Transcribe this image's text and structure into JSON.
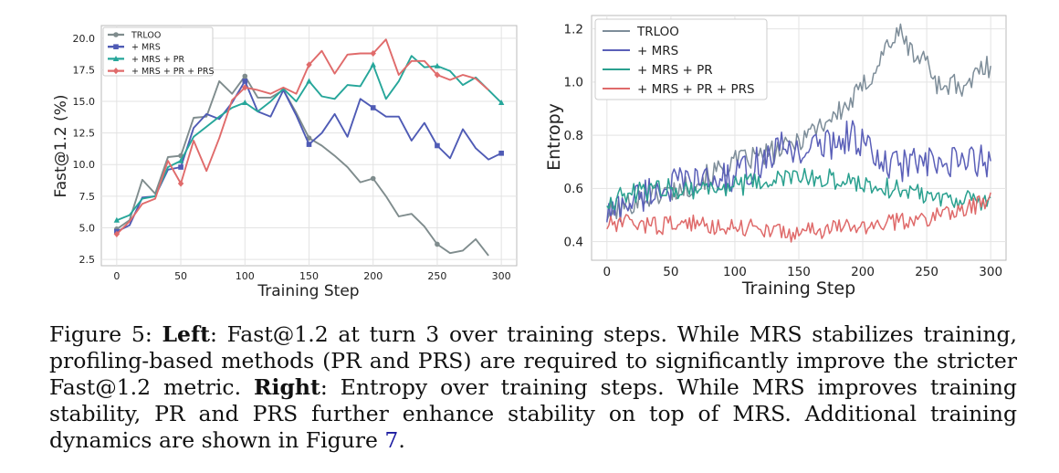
{
  "chart_data": [
    {
      "type": "line",
      "panel": "left",
      "xlabel": "Training Step",
      "ylabel": "Fast@1.2 (%)",
      "xlim": [
        -12,
        312
      ],
      "ylim": [
        2.0,
        21.0
      ],
      "xticks": [
        0,
        50,
        100,
        150,
        200,
        250,
        300
      ],
      "yticks": [
        2.5,
        5.0,
        7.5,
        10.0,
        12.5,
        15.0,
        17.5,
        20.0
      ],
      "ytick_labels": [
        "2.5",
        "5.0",
        "7.5",
        "10.0",
        "12.5",
        "15.0",
        "17.5",
        "20.0"
      ],
      "legend_position": "top-left",
      "marker_every": 50,
      "series": [
        {
          "name": "TRLOO",
          "color": "#7f8c8d",
          "marker": "circle",
          "x": [
            0,
            10,
            20,
            30,
            40,
            50,
            60,
            70,
            80,
            90,
            100,
            110,
            120,
            130,
            140,
            150,
            160,
            170,
            180,
            190,
            200,
            210,
            220,
            230,
            240,
            250,
            260,
            270,
            280,
            290
          ],
          "y": [
            4.9,
            5.6,
            8.8,
            7.7,
            10.6,
            10.7,
            13.7,
            13.8,
            16.6,
            15.6,
            17.0,
            15.3,
            15.3,
            15.9,
            14.1,
            12.1,
            11.5,
            10.7,
            9.8,
            8.6,
            8.9,
            7.5,
            5.9,
            6.1,
            5.1,
            3.7,
            3.0,
            3.2,
            4.1,
            2.8
          ]
        },
        {
          "name": "+ MRS",
          "color": "#4f5bb5",
          "marker": "square",
          "x": [
            0,
            10,
            20,
            30,
            40,
            50,
            60,
            70,
            80,
            90,
            100,
            110,
            120,
            130,
            140,
            150,
            160,
            170,
            180,
            190,
            200,
            210,
            220,
            230,
            240,
            250,
            260,
            270,
            280,
            290,
            300
          ],
          "y": [
            4.7,
            5.2,
            7.4,
            7.5,
            9.6,
            9.8,
            12.9,
            14.0,
            13.6,
            14.9,
            16.6,
            14.2,
            13.8,
            15.9,
            13.9,
            11.6,
            12.5,
            14.0,
            12.2,
            15.2,
            14.5,
            13.8,
            13.8,
            11.9,
            13.3,
            11.5,
            10.5,
            12.8,
            11.3,
            10.4,
            10.9
          ]
        },
        {
          "name": "+ MRS + PR",
          "color": "#26a69a",
          "marker": "triangle",
          "x": [
            0,
            10,
            20,
            30,
            40,
            50,
            60,
            70,
            80,
            90,
            100,
            110,
            120,
            130,
            140,
            150,
            160,
            170,
            180,
            190,
            200,
            210,
            220,
            230,
            240,
            250,
            260,
            270,
            280,
            290,
            300
          ],
          "y": [
            5.6,
            6.0,
            7.3,
            7.5,
            9.8,
            10.3,
            12.2,
            13.0,
            13.8,
            14.5,
            14.9,
            14.2,
            15.0,
            16.0,
            15.0,
            16.6,
            15.4,
            15.2,
            16.3,
            16.2,
            17.9,
            15.2,
            16.6,
            18.6,
            17.7,
            17.8,
            17.4,
            16.3,
            16.9,
            15.9,
            14.9
          ]
        },
        {
          "name": "+ MRS + PR + PRS",
          "color": "#e06b6b",
          "marker": "diamond",
          "x": [
            0,
            10,
            20,
            30,
            40,
            50,
            60,
            70,
            80,
            90,
            100,
            110,
            120,
            130,
            140,
            150,
            160,
            170,
            180,
            190,
            200,
            210,
            220,
            230,
            240,
            250,
            260,
            270,
            280,
            290
          ],
          "y": [
            4.5,
            5.5,
            6.9,
            7.3,
            10.3,
            8.5,
            11.9,
            9.5,
            12.1,
            15.1,
            16.1,
            15.9,
            15.6,
            16.1,
            15.6,
            17.9,
            19.0,
            17.2,
            18.7,
            18.8,
            18.8,
            19.9,
            17.1,
            18.2,
            18.2,
            17.1,
            16.7,
            17.1,
            16.8,
            15.9
          ]
        }
      ]
    },
    {
      "type": "line",
      "panel": "right",
      "xlabel": "Training Step",
      "ylabel": "Entropy",
      "xlim": [
        -12,
        312
      ],
      "ylim": [
        0.33,
        1.25
      ],
      "xticks": [
        0,
        50,
        100,
        150,
        200,
        250,
        300
      ],
      "yticks": [
        0.4,
        0.6,
        0.8,
        1.0,
        1.2
      ],
      "ytick_labels": [
        "0.4",
        "0.6",
        "0.8",
        "1.0",
        "1.2"
      ],
      "legend_position": "top-left",
      "series": [
        {
          "name": "TRLOO",
          "color": "#7d8d99",
          "x": [
            0,
            20,
            40,
            60,
            80,
            100,
            120,
            140,
            160,
            180,
            190,
            200,
            210,
            220,
            230,
            240,
            250,
            260,
            270,
            280,
            290,
            300
          ],
          "y": [
            0.5,
            0.55,
            0.58,
            0.6,
            0.65,
            0.7,
            0.72,
            0.75,
            0.82,
            0.88,
            0.92,
            0.98,
            1.05,
            1.15,
            1.18,
            1.1,
            1.08,
            0.98,
            1.0,
            0.95,
            1.05,
            1.06
          ]
        },
        {
          "name": "+ MRS",
          "color": "#5a5fb8",
          "x": [
            0,
            20,
            40,
            60,
            80,
            100,
            120,
            140,
            150,
            160,
            180,
            190,
            200,
            210,
            220,
            240,
            260,
            280,
            290,
            300
          ],
          "y": [
            0.5,
            0.56,
            0.6,
            0.62,
            0.63,
            0.64,
            0.7,
            0.76,
            0.74,
            0.75,
            0.78,
            0.8,
            0.78,
            0.7,
            0.68,
            0.7,
            0.68,
            0.7,
            0.71,
            0.68
          ]
        },
        {
          "name": "+ MRS + PR",
          "color": "#2aa08f",
          "x": [
            0,
            20,
            40,
            60,
            80,
            100,
            120,
            140,
            160,
            180,
            200,
            220,
            240,
            260,
            280,
            300
          ],
          "y": [
            0.55,
            0.58,
            0.6,
            0.6,
            0.6,
            0.61,
            0.62,
            0.64,
            0.64,
            0.63,
            0.62,
            0.6,
            0.59,
            0.57,
            0.56,
            0.54
          ]
        },
        {
          "name": "+ MRS + PR + PRS",
          "color": "#df6a6a",
          "x": [
            0,
            20,
            40,
            60,
            80,
            100,
            120,
            140,
            160,
            180,
            200,
            220,
            240,
            260,
            280,
            300
          ],
          "y": [
            0.46,
            0.47,
            0.46,
            0.47,
            0.46,
            0.46,
            0.45,
            0.43,
            0.44,
            0.45,
            0.46,
            0.47,
            0.48,
            0.5,
            0.53,
            0.55
          ]
        }
      ]
    }
  ],
  "caption": {
    "figure_label": "Figure 5:",
    "left_label": "Left",
    "left_text": ": Fast@1.2 at turn 3 over training steps. While MRS stabilizes training, profiling-based methods (PR and PRS) are required to significantly improve the stricter Fast@1.2 metric.",
    "right_label": "Right",
    "right_text": ": Entropy over training steps. While MRS improves training stability, PR and PRS further enhance stability on top of MRS. Additional training dynamics are shown in Figure",
    "figure_ref": "7",
    "end_text": "."
  }
}
